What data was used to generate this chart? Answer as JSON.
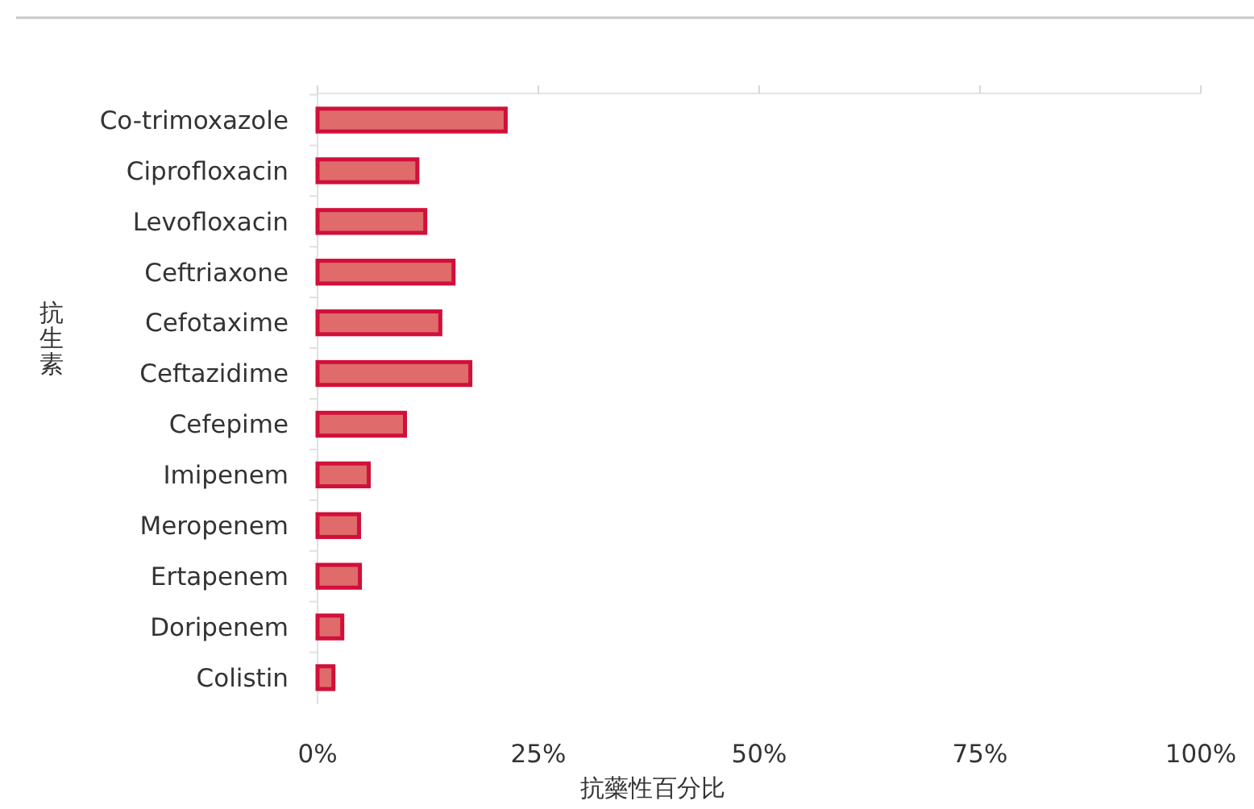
{
  "chart_data": {
    "type": "bar",
    "orientation": "horizontal",
    "xlabel": "抗藥性百分比",
    "ylabel": "抗生素",
    "categories": [
      "Co-trimoxazole",
      "Ciprofloxacin",
      "Levofloxacin",
      "Ceftriaxone",
      "Cefotaxime",
      "Ceftazidime",
      "Cefepime",
      "Imipenem",
      "Meropenem",
      "Ertapenem",
      "Doripenem",
      "Colistin"
    ],
    "values": [
      21.3,
      11.3,
      12.2,
      15.4,
      13.9,
      17.3,
      9.9,
      5.8,
      4.7,
      4.8,
      2.8,
      1.8
    ],
    "color": "#df6b6b",
    "xlim": [
      0,
      100
    ],
    "xticks": [
      {
        "value": 0,
        "label": "0%"
      },
      {
        "value": 25,
        "label": "25%"
      },
      {
        "value": 50,
        "label": "50%"
      },
      {
        "value": 75,
        "label": "75%"
      },
      {
        "value": 100,
        "label": "100%"
      }
    ],
    "grid": false
  }
}
